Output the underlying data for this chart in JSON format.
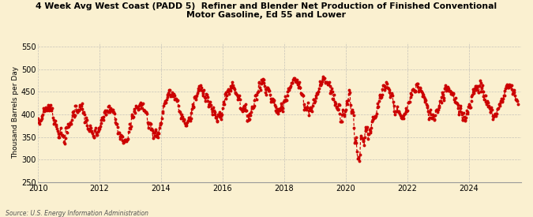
{
  "title": "4 Week Avg West Coast (PADD 5)  Refiner and Blender Net Production of Finished Conventional\nMotor Gasoline, Ed 55 and Lower",
  "ylabel": "Thousand Barrels per Day",
  "source": "Source: U.S. Energy Information Administration",
  "line_color": "#CC0000",
  "background_color": "#FAF0D0",
  "grid_color": "#B0B0B0",
  "ylim": [
    250,
    560
  ],
  "yticks": [
    250,
    300,
    350,
    400,
    450,
    500,
    550
  ],
  "xlim_start": 2010.0,
  "xlim_end": 2025.7,
  "xticks": [
    2010,
    2012,
    2014,
    2016,
    2018,
    2020,
    2022,
    2024
  ]
}
